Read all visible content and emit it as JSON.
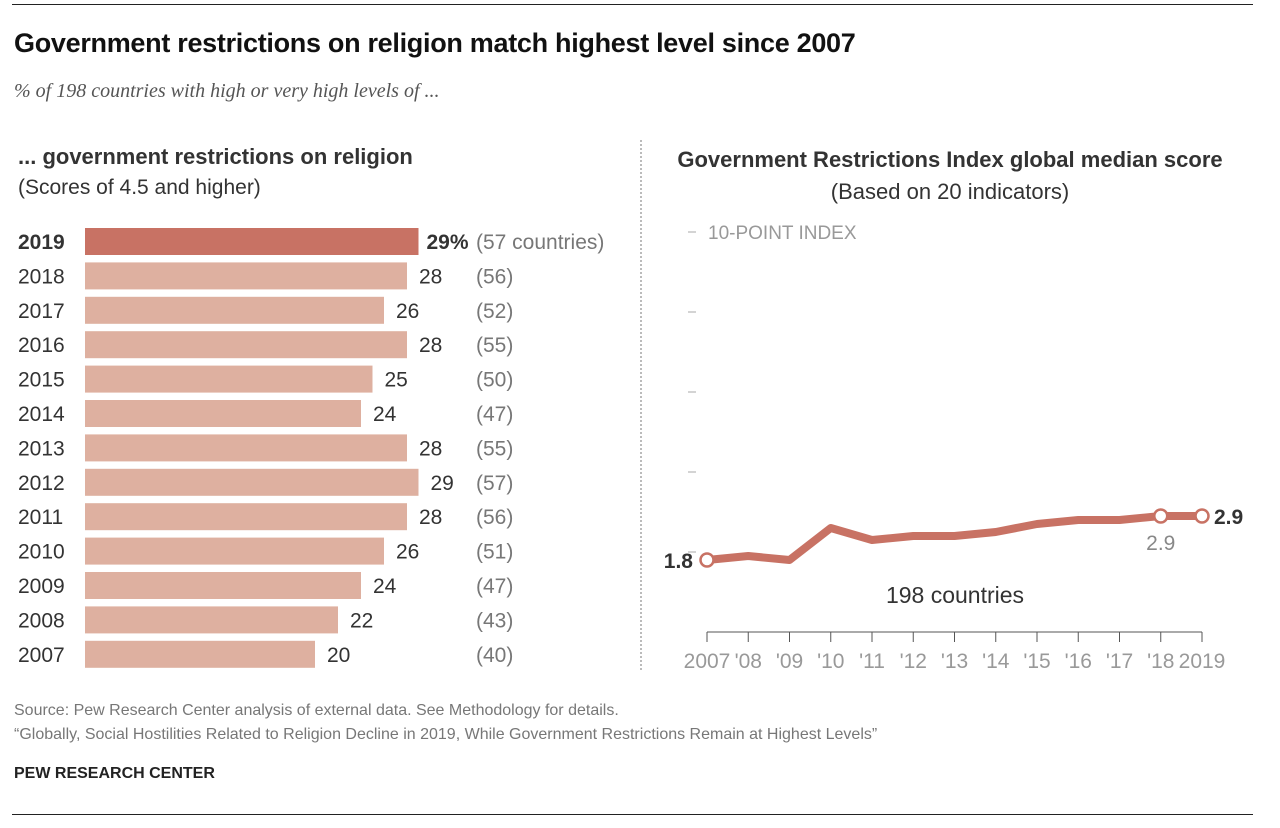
{
  "title": "Government restrictions on religion match highest level since 2007",
  "subtitle": "% of 198 countries with high or very high levels of ...",
  "source": "Source: Pew Research Center analysis of external data. See Methodology for details.",
  "report": "“Globally, Social Hostilities Related to Religion Decline in 2019, While Government Restrictions Remain at Highest Levels”",
  "brand": "PEW RESEARCH CENTER",
  "colors": {
    "highlight": "#c87264",
    "bar": "#deb0a0",
    "line": "#c87264"
  },
  "chart_data": [
    {
      "type": "bar",
      "orientation": "horizontal",
      "title": "... government restrictions on religion",
      "subtitle": "(Scores of 4.5 and higher)",
      "categories": [
        "2019",
        "2018",
        "2017",
        "2016",
        "2015",
        "2014",
        "2013",
        "2012",
        "2011",
        "2010",
        "2009",
        "2008",
        "2007"
      ],
      "values": [
        29,
        28,
        26,
        28,
        25,
        24,
        28,
        29,
        28,
        26,
        24,
        22,
        20
      ],
      "value_labels": [
        "29%",
        "28",
        "26",
        "28",
        "25",
        "24",
        "28",
        "29",
        "28",
        "26",
        "24",
        "22",
        "20"
      ],
      "counts": [
        "(57 countries)",
        "(56)",
        "(52)",
        "(55)",
        "(50)",
        "(47)",
        "(55)",
        "(57)",
        "(56)",
        "(51)",
        "(47)",
        "(43)",
        "(40)"
      ],
      "highlight": "2019"
    },
    {
      "type": "line",
      "title_bold": "Government Restrictions Index global median score",
      "title_rest": " (Based on 20 indicators)",
      "ylabel": "10-POINT INDEX",
      "ylim": [
        0,
        10
      ],
      "yticks": [
        2,
        4,
        6,
        8,
        10
      ],
      "x": [
        "2007",
        "'08",
        "'09",
        "'10",
        "'11",
        "'12",
        "'13",
        "'14",
        "'15",
        "'16",
        "'17",
        "'18",
        "2019"
      ],
      "series": [
        {
          "name": "198 countries",
          "values": [
            1.8,
            1.9,
            1.8,
            2.6,
            2.3,
            2.4,
            2.4,
            2.5,
            2.7,
            2.8,
            2.8,
            2.9,
            2.9
          ]
        }
      ],
      "annotations": {
        "start": "1.8",
        "end": "2.9",
        "y2018": "2.9"
      }
    }
  ]
}
